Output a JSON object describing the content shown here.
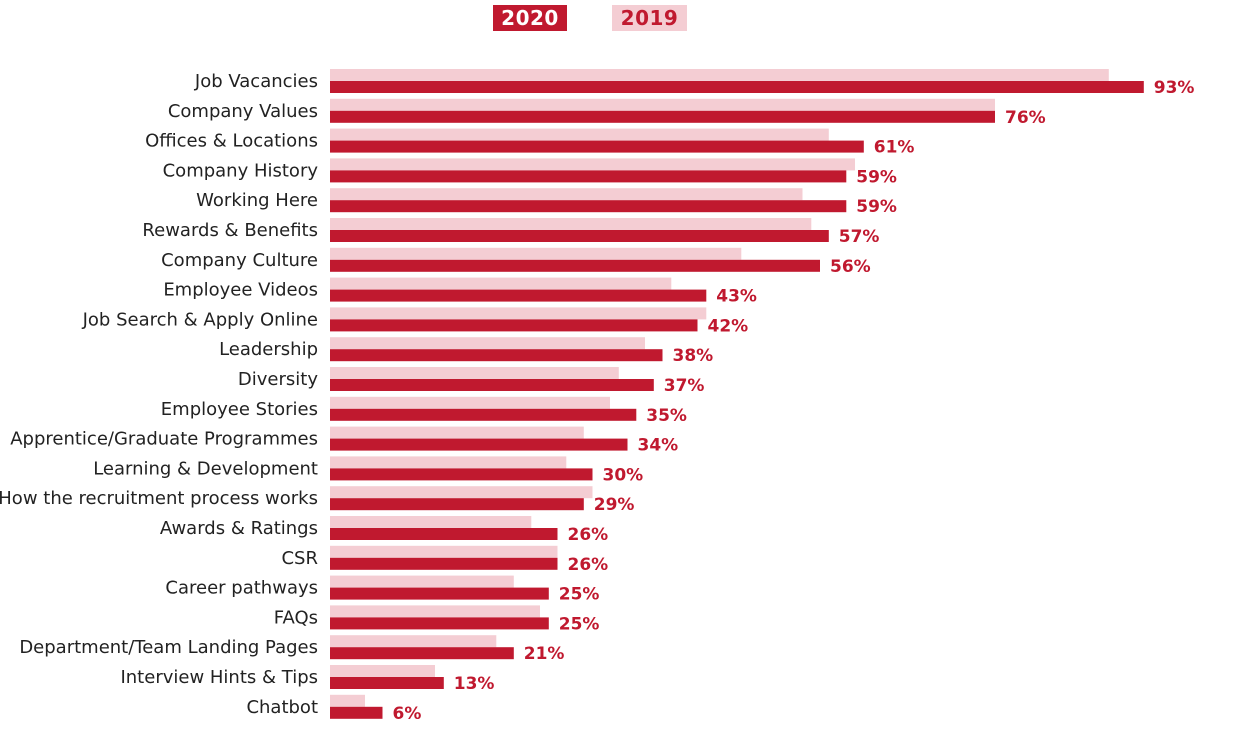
{
  "legend": {
    "label_2020": "2020",
    "label_2019": "2019"
  },
  "colors": {
    "series_2020": "#c0192f",
    "series_2019": "#f4cdd3",
    "value_label": "#c0192f"
  },
  "chart_data": {
    "type": "bar",
    "orientation": "horizontal",
    "title": "",
    "xlabel": "",
    "ylabel": "",
    "xlim": [
      0,
      100
    ],
    "grid": false,
    "legend_position": "top-center",
    "categories": [
      "Job Vacancies",
      "Company Values",
      "Offices & Locations",
      "Company History",
      "Working Here",
      "Rewards & Benefits",
      "Company Culture",
      "Employee Videos",
      "Job Search & Apply Online",
      "Leadership",
      "Diversity",
      "Employee Stories",
      "Apprentice/Graduate Programmes",
      "Learning & Development",
      "How the recruitment process works",
      "Awards & Ratings",
      "CSR",
      "Career pathways",
      "FAQs",
      "Department/Team Landing Pages",
      "Interview Hints & Tips",
      "Chatbot"
    ],
    "series": [
      {
        "name": "2020",
        "values": [
          93,
          76,
          61,
          59,
          59,
          57,
          56,
          43,
          42,
          38,
          37,
          35,
          34,
          30,
          29,
          26,
          26,
          25,
          25,
          21,
          13,
          6
        ]
      },
      {
        "name": "2019",
        "values": [
          89,
          76,
          57,
          60,
          54,
          55,
          47,
          39,
          43,
          36,
          33,
          32,
          29,
          27,
          30,
          23,
          26,
          21,
          24,
          19,
          12,
          4
        ]
      }
    ],
    "value_labels": [
      "93%",
      "76%",
      "61%",
      "59%",
      "59%",
      "57%",
      "56%",
      "43%",
      "42%",
      "38%",
      "37%",
      "35%",
      "34%",
      "30%",
      "29%",
      "26%",
      "26%",
      "25%",
      "25%",
      "21%",
      "13%",
      "6%"
    ]
  }
}
